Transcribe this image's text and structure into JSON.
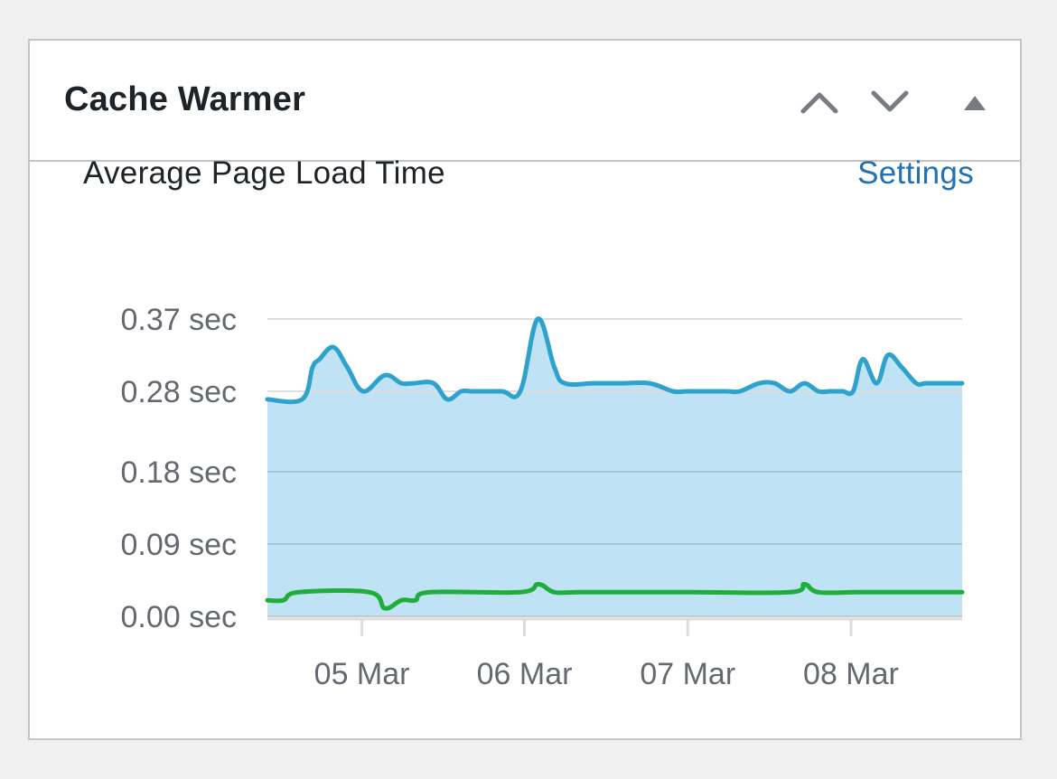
{
  "widget": {
    "title": "Cache Warmer",
    "controls": {
      "move_up_icon": "chevron-up-icon",
      "move_down_icon": "chevron-down-icon",
      "toggle_icon": "triangle-up-icon"
    }
  },
  "chart_header": {
    "title": "Average Page Load Time",
    "settings_label": "Settings"
  },
  "chart_data": {
    "type": "area",
    "title": "Average Page Load Time",
    "xlabel": "",
    "ylabel": "",
    "ylim": [
      0.0,
      0.37
    ],
    "y_ticks": [
      0.0,
      0.09,
      0.18,
      0.28,
      0.37
    ],
    "y_tick_labels": [
      "0.00 sec",
      "0.09 sec",
      "0.18 sec",
      "0.28 sec",
      "0.37 sec"
    ],
    "xlim": [
      0,
      100
    ],
    "x_ticks": [
      13.6,
      37.0,
      60.5,
      84.0
    ],
    "x_tick_labels": [
      "05 Mar",
      "06 Mar",
      "07 Mar",
      "08 Mar"
    ],
    "grid": true,
    "legend": "none",
    "series": [
      {
        "name": "",
        "color": "#2ea2cc",
        "fill": "#bfe3f5",
        "filled": true,
        "x": [
          0,
          5,
          6.5,
          7.5,
          9.5,
          11.5,
          13.8,
          16.9,
          19.3,
          21.0,
          23.9,
          25.9,
          27.9,
          29.5,
          33.7,
          36.4,
          38.9,
          41.3,
          42.8,
          47,
          51,
          55,
          58.4,
          60.5,
          66,
          68,
          70.8,
          73,
          75.2,
          77.3,
          79.3,
          81,
          82.8,
          84.3,
          85.7,
          87.7,
          89.3,
          91.3,
          93.4,
          94.8,
          97.5,
          100
        ],
        "values": [
          0.27,
          0.27,
          0.31,
          0.32,
          0.335,
          0.31,
          0.28,
          0.3,
          0.29,
          0.29,
          0.29,
          0.27,
          0.28,
          0.28,
          0.28,
          0.28,
          0.37,
          0.31,
          0.29,
          0.29,
          0.29,
          0.29,
          0.28,
          0.28,
          0.28,
          0.28,
          0.29,
          0.29,
          0.28,
          0.29,
          0.28,
          0.28,
          0.28,
          0.28,
          0.32,
          0.29,
          0.325,
          0.31,
          0.29,
          0.29,
          0.29,
          0.29
        ]
      },
      {
        "name": "",
        "color": "#1fae3a",
        "filled": false,
        "x": [
          0,
          2.3,
          4.5,
          14.7,
          16.9,
          19.3,
          21.3,
          23.4,
          36.4,
          39.0,
          41.3,
          45,
          60.5,
          75.2,
          77.3,
          79.3,
          85,
          93,
          100
        ],
        "values": [
          0.02,
          0.02,
          0.03,
          0.03,
          0.01,
          0.02,
          0.02,
          0.03,
          0.03,
          0.04,
          0.03,
          0.03,
          0.03,
          0.03,
          0.04,
          0.03,
          0.03,
          0.03,
          0.03
        ]
      }
    ]
  }
}
